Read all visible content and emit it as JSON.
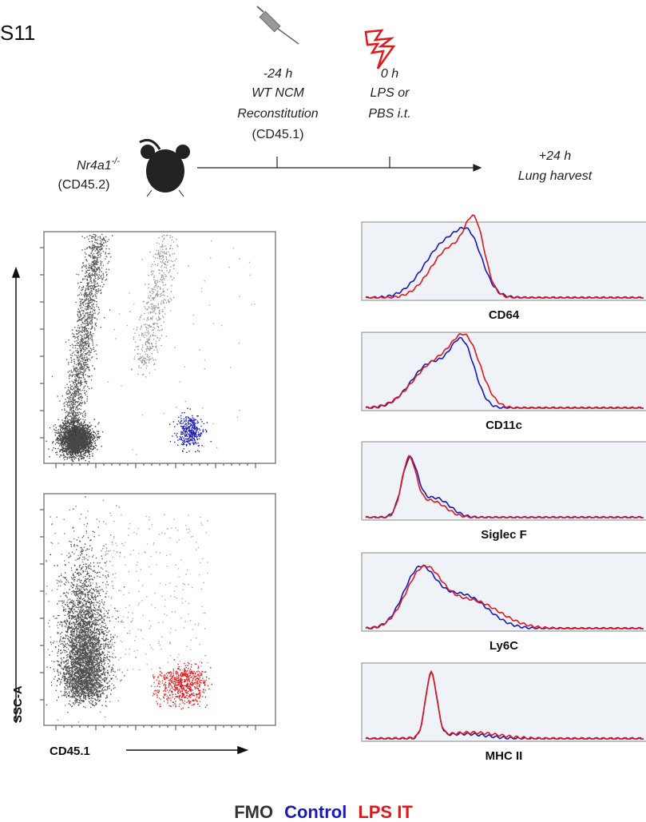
{
  "figure_label": "S11",
  "timeline": {
    "mouse": {
      "name": "Nr4a1",
      "superscript": "-/-",
      "strain": "(CD45.2)"
    },
    "step1": {
      "time": "-24 h",
      "line1": "WT NCM",
      "line2": "Reconstitution",
      "line3": "(CD45.1)"
    },
    "step2": {
      "time": "0 h",
      "line1": "LPS or",
      "line2": "PBS i.t."
    },
    "step3": {
      "time": "+24 h",
      "line1": "Lung harvest"
    }
  },
  "scatter": {
    "y_label": "SSC-A",
    "x_label": "CD45.1"
  },
  "histograms": [
    "CD64",
    "CD11c",
    "Siglec F",
    "Ly6C",
    "MHC II"
  ],
  "legend": [
    {
      "name": "FMO",
      "color": "#333333"
    },
    {
      "name": "Control",
      "color": "#1a1ab8"
    },
    {
      "name": "LPS IT",
      "color": "#e0181c"
    }
  ]
}
